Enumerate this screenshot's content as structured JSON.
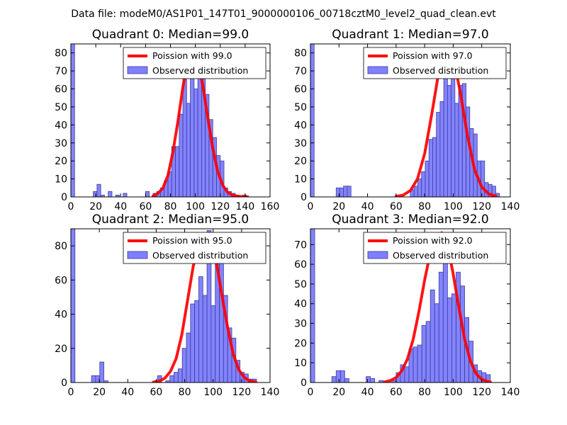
{
  "figure": {
    "suptitle": "Data file: modeM0/AS1P01_147T01_9000000106_00718cztM0_level2_quad_clean.evt"
  },
  "colors": {
    "bar_fill": "#7f7fff",
    "bar_edge": "#3c3c9a",
    "curve": "#ff0000",
    "axes": "#000000"
  },
  "chart_data": [
    {
      "type": "bar",
      "title": "Quadrant 0: Median=99.0",
      "legend": [
        "Poission with 99.0",
        "Observed distribution"
      ],
      "xlim": [
        0,
        160
      ],
      "ylim": [
        0,
        85
      ],
      "xticks": [
        0,
        20,
        40,
        60,
        80,
        100,
        120,
        140,
        160
      ],
      "yticks": [
        0,
        10,
        20,
        30,
        40,
        50,
        60,
        70,
        80
      ],
      "bin_width": 3,
      "bins": [
        [
          0,
          85
        ],
        [
          18,
          3
        ],
        [
          21,
          7
        ],
        [
          24,
          1
        ],
        [
          30,
          3
        ],
        [
          36,
          1
        ],
        [
          42,
          2
        ],
        [
          60,
          3
        ],
        [
          66,
          2
        ],
        [
          69,
          3
        ],
        [
          72,
          5
        ],
        [
          75,
          9
        ],
        [
          78,
          14
        ],
        [
          81,
          28
        ],
        [
          84,
          28
        ],
        [
          87,
          46
        ],
        [
          90,
          70
        ],
        [
          93,
          52
        ],
        [
          96,
          80
        ],
        [
          99,
          60
        ],
        [
          102,
          71
        ],
        [
          105,
          72
        ],
        [
          108,
          57
        ],
        [
          111,
          43
        ],
        [
          114,
          33
        ],
        [
          117,
          23
        ],
        [
          120,
          20
        ],
        [
          123,
          5
        ],
        [
          126,
          3
        ],
        [
          129,
          2
        ],
        [
          132,
          1
        ],
        [
          138,
          1
        ]
      ],
      "curve": {
        "x": [
          66,
          70,
          74,
          78,
          82,
          86,
          90,
          94,
          98,
          102,
          106,
          110,
          114,
          118,
          122,
          126,
          130,
          134,
          138,
          142
        ],
        "y": [
          0.5,
          2,
          5,
          12,
          25,
          42,
          61,
          76,
          82,
          76,
          62,
          44,
          27,
          14,
          6.5,
          2.5,
          1,
          0.4,
          0.15,
          0.05
        ]
      }
    },
    {
      "type": "bar",
      "title": "Quadrant 1: Median=97.0",
      "legend": [
        "Poission with 97.0",
        "Observed distribution"
      ],
      "xlim": [
        0,
        140
      ],
      "ylim": [
        0,
        85
      ],
      "xticks": [
        0,
        20,
        40,
        60,
        80,
        100,
        120,
        140
      ],
      "yticks": [
        0,
        10,
        20,
        30,
        40,
        50,
        60,
        70,
        80
      ],
      "bin_width": 2.6,
      "bins": [
        [
          0,
          85
        ],
        [
          18,
          5
        ],
        [
          20.6,
          5
        ],
        [
          23.2,
          6
        ],
        [
          25.8,
          6
        ],
        [
          70,
          4
        ],
        [
          72.6,
          6
        ],
        [
          75.2,
          10
        ],
        [
          77.8,
          14
        ],
        [
          80.4,
          20
        ],
        [
          83,
          32
        ],
        [
          85.6,
          33
        ],
        [
          88.2,
          47
        ],
        [
          90.8,
          53
        ],
        [
          93.4,
          76
        ],
        [
          96,
          62
        ],
        [
          98.6,
          82
        ],
        [
          101.2,
          52
        ],
        [
          103.8,
          62
        ],
        [
          106.4,
          63
        ],
        [
          109,
          50
        ],
        [
          111.6,
          38
        ],
        [
          114.2,
          35
        ],
        [
          116.8,
          20
        ],
        [
          119.4,
          20
        ],
        [
          122,
          8
        ],
        [
          124.6,
          7
        ],
        [
          127.2,
          6
        ],
        [
          129.8,
          2
        ]
      ],
      "curve": {
        "x": [
          60,
          65,
          70,
          75,
          80,
          85,
          90,
          95,
          97,
          100,
          105,
          110,
          115,
          120,
          125,
          130
        ],
        "y": [
          0.3,
          1,
          3.5,
          10,
          24,
          46,
          70,
          81,
          82,
          78,
          58,
          34,
          15,
          5.5,
          1.6,
          0.4
        ]
      }
    },
    {
      "type": "bar",
      "title": "Quadrant 2: Median=95.0",
      "legend": [
        "Poission with 95.0",
        "Observed distribution"
      ],
      "xlim": [
        0,
        140
      ],
      "ylim": [
        0,
        90
      ],
      "xticks": [
        0,
        20,
        40,
        60,
        80,
        100,
        120,
        140
      ],
      "yticks": [
        0,
        20,
        40,
        60,
        80
      ],
      "bin_width": 2.9,
      "bins": [
        [
          0,
          90
        ],
        [
          14.5,
          4
        ],
        [
          17.4,
          4
        ],
        [
          20.3,
          12
        ],
        [
          23.2,
          1
        ],
        [
          60.9,
          4
        ],
        [
          66.7,
          1
        ],
        [
          69.6,
          4
        ],
        [
          72.5,
          6
        ],
        [
          75.4,
          8
        ],
        [
          78.3,
          20
        ],
        [
          81.2,
          29
        ],
        [
          84.1,
          46
        ],
        [
          87,
          48
        ],
        [
          89.9,
          62
        ],
        [
          92.8,
          51
        ],
        [
          95.7,
          89
        ],
        [
          98.6,
          45
        ],
        [
          101.5,
          73
        ],
        [
          104.4,
          82
        ],
        [
          107.3,
          51
        ],
        [
          110.2,
          32
        ],
        [
          113.1,
          26
        ],
        [
          116,
          13
        ],
        [
          118.9,
          6
        ],
        [
          121.8,
          5
        ],
        [
          124.7,
          2
        ],
        [
          127.6,
          2
        ]
      ],
      "curve": {
        "x": [
          58,
          62,
          66,
          70,
          74,
          78,
          82,
          86,
          90,
          94,
          95,
          98,
          102,
          106,
          110,
          114,
          118,
          122,
          126,
          130
        ],
        "y": [
          0.2,
          0.8,
          2.5,
          6.5,
          14,
          28,
          48,
          68,
          82,
          86,
          87,
          84,
          72,
          52,
          33,
          17,
          7.5,
          2.8,
          0.9,
          0.3
        ]
      }
    },
    {
      "type": "bar",
      "title": "Quadrant 3: Median=92.0",
      "legend": [
        "Poission with 92.0",
        "Observed distribution"
      ],
      "xlim": [
        0,
        140
      ],
      "ylim": [
        0,
        78
      ],
      "xticks": [
        0,
        20,
        40,
        60,
        80,
        100,
        120,
        140
      ],
      "yticks": [
        0,
        10,
        20,
        30,
        40,
        50,
        60,
        70
      ],
      "bin_width": 3,
      "bins": [
        [
          0,
          78
        ],
        [
          15,
          3
        ],
        [
          18,
          6
        ],
        [
          21,
          6
        ],
        [
          24,
          2
        ],
        [
          39,
          3
        ],
        [
          42,
          2
        ],
        [
          48,
          1
        ],
        [
          57,
          1
        ],
        [
          60,
          5
        ],
        [
          63,
          9
        ],
        [
          66,
          8
        ],
        [
          69,
          17
        ],
        [
          72,
          18
        ],
        [
          75,
          19
        ],
        [
          78,
          29
        ],
        [
          81,
          31
        ],
        [
          84,
          47
        ],
        [
          87,
          40
        ],
        [
          90,
          56
        ],
        [
          93,
          74
        ],
        [
          96,
          43
        ],
        [
          99,
          45
        ],
        [
          102,
          56
        ],
        [
          105,
          49
        ],
        [
          108,
          33
        ],
        [
          111,
          21
        ],
        [
          114,
          9
        ],
        [
          117,
          6
        ],
        [
          120,
          5
        ],
        [
          123,
          4
        ]
      ],
      "curve": {
        "x": [
          52,
          56,
          60,
          64,
          68,
          72,
          76,
          80,
          84,
          88,
          92,
          96,
          100,
          104,
          108,
          112,
          116,
          120,
          124,
          126
        ],
        "y": [
          0.3,
          1,
          2.5,
          6,
          12,
          22,
          36,
          52,
          66,
          74,
          76,
          70,
          55,
          38,
          22,
          11,
          4.5,
          1.6,
          0.5,
          0.3
        ]
      }
    }
  ]
}
